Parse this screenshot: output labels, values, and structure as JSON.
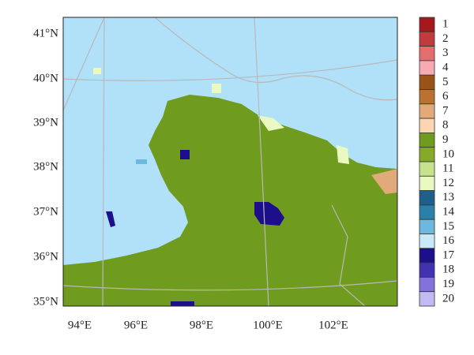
{
  "map": {
    "lat_labels": [
      "41°N",
      "40°N",
      "39°N",
      "38°N",
      "37°N",
      "36°N",
      "35°N"
    ],
    "lon_labels": [
      "94°E",
      "96°E",
      "98°E",
      "100°E",
      "102°E"
    ],
    "legend": [
      {
        "label": "1",
        "color": "#a3191c"
      },
      {
        "label": "2",
        "color": "#c23a3c"
      },
      {
        "label": "3",
        "color": "#e26e6e"
      },
      {
        "label": "4",
        "color": "#f6aab2"
      },
      {
        "label": "5",
        "color": "#9a5316"
      },
      {
        "label": "6",
        "color": "#b97230"
      },
      {
        "label": "7",
        "color": "#e0aa7a"
      },
      {
        "label": "8",
        "color": "#fcd6b2"
      },
      {
        "label": "9",
        "color": "#6f9b1f"
      },
      {
        "label": "10",
        "color": "#86a92a"
      },
      {
        "label": "11",
        "color": "#c6e28c"
      },
      {
        "label": "12",
        "color": "#eaf9c2"
      },
      {
        "label": "13",
        "color": "#1f5f8b"
      },
      {
        "label": "14",
        "color": "#2b80a9"
      },
      {
        "label": "15",
        "color": "#6cb9dd"
      },
      {
        "label": "16",
        "color": "#c9e9f9"
      },
      {
        "label": "17",
        "color": "#1d0f8c"
      },
      {
        "label": "18",
        "color": "#4232b2"
      },
      {
        "label": "19",
        "color": "#8272d9"
      },
      {
        "label": "20",
        "color": "#c2baf2"
      }
    ]
  }
}
